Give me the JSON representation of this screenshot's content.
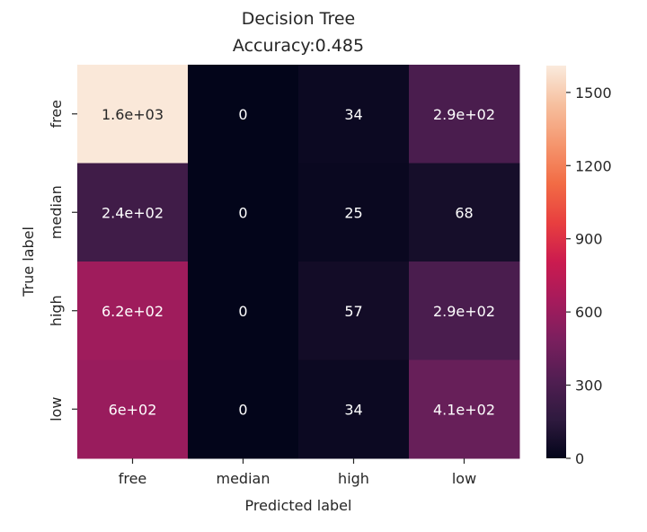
{
  "chart_data": {
    "type": "heatmap",
    "title": "Decision Tree",
    "subtitle": "Accuracy:0.485",
    "xlabel": "Predicted label",
    "ylabel": "True label",
    "x_categories": [
      "free",
      "median",
      "high",
      "low"
    ],
    "y_categories": [
      "free",
      "median",
      "high",
      "low"
    ],
    "values": [
      [
        1600,
        0,
        34,
        290
      ],
      [
        240,
        0,
        25,
        68
      ],
      [
        620,
        0,
        57,
        290
      ],
      [
        600,
        0,
        34,
        410
      ]
    ],
    "annotations": [
      [
        "1.6e+03",
        "0",
        "34",
        "2.9e+02"
      ],
      [
        "2.4e+02",
        "0",
        "25",
        "68"
      ],
      [
        "6.2e+02",
        "0",
        "57",
        "2.9e+02"
      ],
      [
        "6e+02",
        "0",
        "34",
        "4.1e+02"
      ]
    ],
    "colormap": "rocket",
    "colorbar": {
      "range": [
        0,
        1610
      ],
      "ticks": [
        0,
        300,
        600,
        900,
        1200,
        1500
      ],
      "tick_labels": [
        "0",
        "300",
        "600",
        "900",
        "1200",
        "1500"
      ]
    },
    "colorbar_stops": [
      "#03051a",
      "#2f1a3f",
      "#511e52",
      "#7a1f5e",
      "#a51b5c",
      "#cb1b4f",
      "#e83f3f",
      "#f26c45",
      "#f5966e",
      "#f6bf9e",
      "#faebdd"
    ],
    "grid": false,
    "legend": "colorbar-right"
  }
}
